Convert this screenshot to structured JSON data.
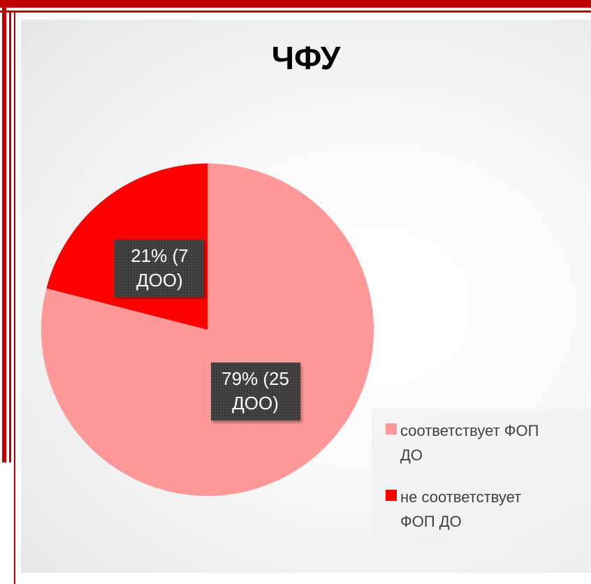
{
  "chart_data": {
    "type": "pie",
    "title": "ЧФУ",
    "categories": [
      "соответствует ФОП ДО",
      "не соответствует ФОП ДО"
    ],
    "values": [
      79,
      21
    ],
    "value_labels": [
      "79% (25 ДОО)",
      "21% (7 ДОО)"
    ],
    "colors": [
      "#ff9999",
      "#ff0000"
    ],
    "legend": "right"
  }
}
